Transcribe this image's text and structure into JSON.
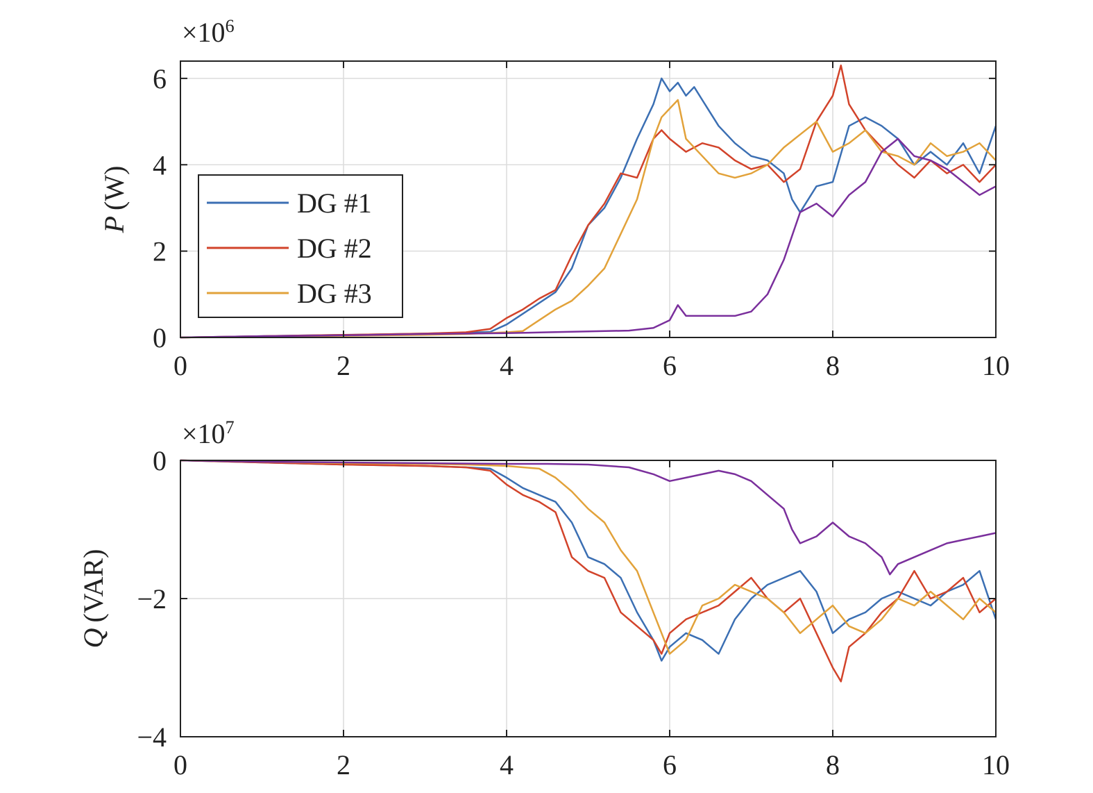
{
  "chart_data": [
    {
      "type": "line",
      "panel": "top",
      "ylabel_var": "P",
      "ylabel_unit": "(W)",
      "exponent_base": "×10",
      "exponent_power": "6",
      "xlim": [
        0,
        10
      ],
      "ylim": [
        0,
        6.4
      ],
      "xticks": [
        "0",
        "2",
        "4",
        "6",
        "8",
        "10"
      ],
      "yticks": [
        "0",
        "2",
        "4",
        "6"
      ],
      "grid": true,
      "legend": {
        "placement": "left-center",
        "entries": [
          "DG #1",
          "DG #2",
          "DG #3"
        ]
      },
      "series": [
        {
          "name": "DG #1",
          "color": "#3b6fb3",
          "x": [
            0,
            1,
            2,
            3,
            3.5,
            3.8,
            4.0,
            4.2,
            4.4,
            4.6,
            4.8,
            5.0,
            5.2,
            5.4,
            5.6,
            5.8,
            5.9,
            6.0,
            6.1,
            6.2,
            6.3,
            6.4,
            6.6,
            6.8,
            7.0,
            7.2,
            7.4,
            7.5,
            7.6,
            7.8,
            8.0,
            8.2,
            8.4,
            8.6,
            8.8,
            9.0,
            9.2,
            9.4,
            9.6,
            9.8,
            10.0
          ],
          "y": [
            0.0,
            0.03,
            0.06,
            0.09,
            0.11,
            0.13,
            0.3,
            0.55,
            0.8,
            1.05,
            1.6,
            2.6,
            3.0,
            3.7,
            4.6,
            5.4,
            6.0,
            5.7,
            5.9,
            5.6,
            5.8,
            5.5,
            4.9,
            4.5,
            4.2,
            4.1,
            3.8,
            3.2,
            2.9,
            3.5,
            3.6,
            4.9,
            5.1,
            4.9,
            4.6,
            4.0,
            4.3,
            4.0,
            4.5,
            3.8,
            4.9
          ]
        },
        {
          "name": "DG #2",
          "color": "#d2432a",
          "x": [
            0,
            1,
            2,
            3,
            3.5,
            3.8,
            4.0,
            4.2,
            4.4,
            4.6,
            4.8,
            5.0,
            5.2,
            5.4,
            5.6,
            5.8,
            5.9,
            6.0,
            6.2,
            6.4,
            6.6,
            6.8,
            7.0,
            7.2,
            7.4,
            7.6,
            7.8,
            8.0,
            8.1,
            8.2,
            8.4,
            8.6,
            8.8,
            9.0,
            9.2,
            9.4,
            9.6,
            9.8,
            10.0
          ],
          "y": [
            0.0,
            0.03,
            0.06,
            0.09,
            0.12,
            0.2,
            0.45,
            0.65,
            0.9,
            1.1,
            1.9,
            2.6,
            3.1,
            3.8,
            3.7,
            4.6,
            4.8,
            4.6,
            4.3,
            4.5,
            4.4,
            4.1,
            3.9,
            4.0,
            3.6,
            3.9,
            5.0,
            5.6,
            6.3,
            5.4,
            4.8,
            4.4,
            4.0,
            3.7,
            4.1,
            3.8,
            4.0,
            3.6,
            4.0
          ]
        },
        {
          "name": "DG #3",
          "color": "#e2a23a",
          "x": [
            0,
            1,
            2,
            3,
            3.5,
            4.0,
            4.2,
            4.4,
            4.6,
            4.8,
            5.0,
            5.2,
            5.4,
            5.6,
            5.8,
            5.9,
            6.0,
            6.1,
            6.2,
            6.4,
            6.6,
            6.8,
            7.0,
            7.2,
            7.4,
            7.6,
            7.8,
            8.0,
            8.2,
            8.4,
            8.6,
            8.8,
            9.0,
            9.2,
            9.4,
            9.6,
            9.8,
            10.0
          ],
          "y": [
            0.0,
            0.02,
            0.04,
            0.06,
            0.08,
            0.12,
            0.15,
            0.4,
            0.65,
            0.85,
            1.2,
            1.6,
            2.4,
            3.2,
            4.6,
            5.1,
            5.3,
            5.5,
            4.6,
            4.2,
            3.8,
            3.7,
            3.8,
            4.0,
            4.4,
            4.7,
            5.0,
            4.3,
            4.5,
            4.8,
            4.3,
            4.2,
            4.0,
            4.5,
            4.2,
            4.3,
            4.5,
            4.1
          ]
        },
        {
          "name": "",
          "color": "#7a2f9c",
          "x": [
            0,
            1,
            2,
            3,
            4.0,
            4.5,
            5.0,
            5.5,
            5.8,
            6.0,
            6.1,
            6.2,
            6.3,
            6.5,
            6.8,
            7.0,
            7.2,
            7.4,
            7.6,
            7.8,
            8.0,
            8.2,
            8.4,
            8.6,
            8.8,
            9.0,
            9.2,
            9.4,
            9.6,
            9.8,
            10.0
          ],
          "y": [
            0.0,
            0.03,
            0.05,
            0.08,
            0.1,
            0.12,
            0.14,
            0.16,
            0.22,
            0.4,
            0.75,
            0.5,
            0.5,
            0.5,
            0.5,
            0.6,
            1.0,
            1.8,
            2.9,
            3.1,
            2.8,
            3.3,
            3.6,
            4.3,
            4.6,
            4.2,
            4.1,
            3.9,
            3.6,
            3.3,
            3.5
          ]
        }
      ]
    },
    {
      "type": "line",
      "panel": "bottom",
      "ylabel_var": "Q",
      "ylabel_unit": "(VAR)",
      "exponent_base": "×10",
      "exponent_power": "7",
      "xlim": [
        0,
        10
      ],
      "ylim": [
        -4,
        0
      ],
      "xticks": [
        "0",
        "2",
        "4",
        "6",
        "8",
        "10"
      ],
      "yticks": [
        "0",
        "−2",
        "−4"
      ],
      "grid": true,
      "series": [
        {
          "name": "DG #1",
          "color": "#3b6fb3",
          "x": [
            0,
            1,
            2,
            3,
            3.5,
            3.8,
            4.0,
            4.2,
            4.4,
            4.6,
            4.8,
            5.0,
            5.2,
            5.4,
            5.6,
            5.8,
            5.9,
            6.0,
            6.2,
            6.4,
            6.6,
            6.8,
            7.0,
            7.2,
            7.4,
            7.6,
            7.8,
            8.0,
            8.2,
            8.4,
            8.6,
            8.8,
            9.0,
            9.2,
            9.4,
            9.6,
            9.8,
            10.0
          ],
          "y": [
            0,
            -0.03,
            -0.06,
            -0.08,
            -0.1,
            -0.12,
            -0.25,
            -0.4,
            -0.5,
            -0.6,
            -0.9,
            -1.4,
            -1.5,
            -1.7,
            -2.2,
            -2.6,
            -2.9,
            -2.7,
            -2.5,
            -2.6,
            -2.8,
            -2.3,
            -2.0,
            -1.8,
            -1.7,
            -1.6,
            -1.9,
            -2.5,
            -2.3,
            -2.2,
            -2.0,
            -1.9,
            -2.0,
            -2.1,
            -1.9,
            -1.8,
            -1.6,
            -2.3
          ]
        },
        {
          "name": "DG #2",
          "color": "#d2432a",
          "x": [
            0,
            1,
            2,
            3,
            3.5,
            3.8,
            4.0,
            4.2,
            4.4,
            4.6,
            4.8,
            5.0,
            5.2,
            5.4,
            5.6,
            5.8,
            5.9,
            6.0,
            6.2,
            6.4,
            6.6,
            6.8,
            7.0,
            7.2,
            7.4,
            7.6,
            7.8,
            8.0,
            8.1,
            8.2,
            8.4,
            8.6,
            8.8,
            9.0,
            9.2,
            9.4,
            9.6,
            9.8,
            10.0
          ],
          "y": [
            0,
            -0.03,
            -0.06,
            -0.08,
            -0.1,
            -0.15,
            -0.35,
            -0.5,
            -0.6,
            -0.75,
            -1.4,
            -1.6,
            -1.7,
            -2.2,
            -2.4,
            -2.6,
            -2.8,
            -2.5,
            -2.3,
            -2.2,
            -2.1,
            -1.9,
            -1.7,
            -2.0,
            -2.2,
            -2.0,
            -2.5,
            -3.0,
            -3.2,
            -2.7,
            -2.5,
            -2.2,
            -2.0,
            -1.6,
            -2.0,
            -1.9,
            -1.7,
            -2.2,
            -2.0
          ]
        },
        {
          "name": "DG #3",
          "color": "#e2a23a",
          "x": [
            0,
            1,
            2,
            3,
            3.5,
            4.0,
            4.2,
            4.4,
            4.6,
            4.8,
            5.0,
            5.2,
            5.4,
            5.6,
            5.8,
            5.9,
            6.0,
            6.2,
            6.4,
            6.6,
            6.8,
            7.0,
            7.2,
            7.4,
            7.6,
            7.8,
            8.0,
            8.2,
            8.4,
            8.6,
            8.8,
            9.0,
            9.2,
            9.4,
            9.6,
            9.8,
            10.0
          ],
          "y": [
            0,
            -0.02,
            -0.04,
            -0.05,
            -0.06,
            -0.08,
            -0.1,
            -0.12,
            -0.25,
            -0.45,
            -0.7,
            -0.9,
            -1.3,
            -1.6,
            -2.2,
            -2.5,
            -2.8,
            -2.6,
            -2.1,
            -2.0,
            -1.8,
            -1.9,
            -2.0,
            -2.2,
            -2.5,
            -2.3,
            -2.1,
            -2.4,
            -2.5,
            -2.3,
            -2.0,
            -2.1,
            -1.9,
            -2.1,
            -2.3,
            -2.0,
            -2.2
          ]
        },
        {
          "name": "",
          "color": "#7a2f9c",
          "x": [
            0,
            1,
            2,
            3,
            4.0,
            4.5,
            5.0,
            5.5,
            5.8,
            6.0,
            6.2,
            6.4,
            6.6,
            6.8,
            7.0,
            7.2,
            7.4,
            7.5,
            7.6,
            7.8,
            8.0,
            8.2,
            8.4,
            8.6,
            8.7,
            8.8,
            9.0,
            9.2,
            9.4,
            9.6,
            9.8,
            10.0
          ],
          "y": [
            0,
            -0.02,
            -0.03,
            -0.04,
            -0.05,
            -0.05,
            -0.06,
            -0.1,
            -0.2,
            -0.3,
            -0.25,
            -0.2,
            -0.15,
            -0.2,
            -0.3,
            -0.5,
            -0.7,
            -1.0,
            -1.2,
            -1.1,
            -0.9,
            -1.1,
            -1.2,
            -1.4,
            -1.65,
            -1.5,
            -1.4,
            -1.3,
            -1.2,
            -1.15,
            -1.1,
            -1.05
          ]
        }
      ]
    }
  ]
}
